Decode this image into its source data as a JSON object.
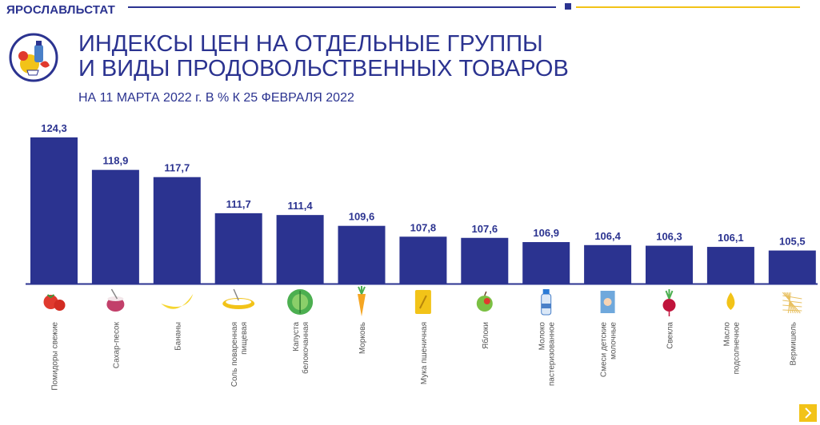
{
  "header": {
    "brand": "ЯРОСЛАВЛЬСТАТ",
    "title_line1": "ИНДЕКСЫ ЦЕН НА ОТДЕЛЬНЫЕ ГРУППЫ",
    "title_line2": "И ВИДЫ ПРОДОВОЛЬСТВЕННЫХ ТОВАРОВ",
    "subtitle": "НА 11 МАРТА 2022 г. В % К 25 ФЕВРАЛЯ 2022"
  },
  "colors": {
    "brand": "#2b3390",
    "bar": "#2b3390",
    "accent": "#f2c318",
    "label": "#555555"
  },
  "nav": {
    "icon": "chevron-right-icon"
  },
  "chart_data": {
    "type": "bar",
    "title": "ИНДЕКСЫ ЦЕН НА ОТДЕЛЬНЫЕ ГРУППЫ И ВИДЫ ПРОДОВОЛЬСТВЕННЫХ ТОВАРОВ",
    "subtitle": "НА 11 МАРТА 2022 г. В % К 25 ФЕВРАЛЯ 2022",
    "categories": [
      "Помидоры свежие",
      "Сахар-песок",
      "Бананы",
      "Соль поваренная пищевая",
      "Капуста белокочанная",
      "Морковь",
      "Мука пшеничная",
      "Яблоки",
      "Молоко пастеризованное",
      "Смеси детские молочные",
      "Свекла",
      "Масло подсолнечное",
      "Вермишель"
    ],
    "values": [
      124.3,
      118.9,
      117.7,
      111.7,
      111.4,
      109.6,
      107.8,
      107.6,
      106.9,
      106.4,
      106.3,
      106.1,
      105.5
    ],
    "value_labels": [
      "124,3",
      "118,9",
      "117,7",
      "111,7",
      "111,4",
      "109,6",
      "107,8",
      "107,6",
      "106,9",
      "106,4",
      "106,3",
      "106,1",
      "105,5"
    ],
    "icons": [
      "tomato-icon",
      "sugar-bowl-icon",
      "banana-icon",
      "salt-bowl-icon",
      "cabbage-icon",
      "carrot-icon",
      "flour-bag-icon",
      "apple-icon",
      "milk-bottle-icon",
      "baby-formula-icon",
      "beet-icon",
      "oil-drop-icon",
      "vermicelli-icon"
    ],
    "ylim": [
      100,
      125
    ],
    "grid": false,
    "legend": "none"
  }
}
